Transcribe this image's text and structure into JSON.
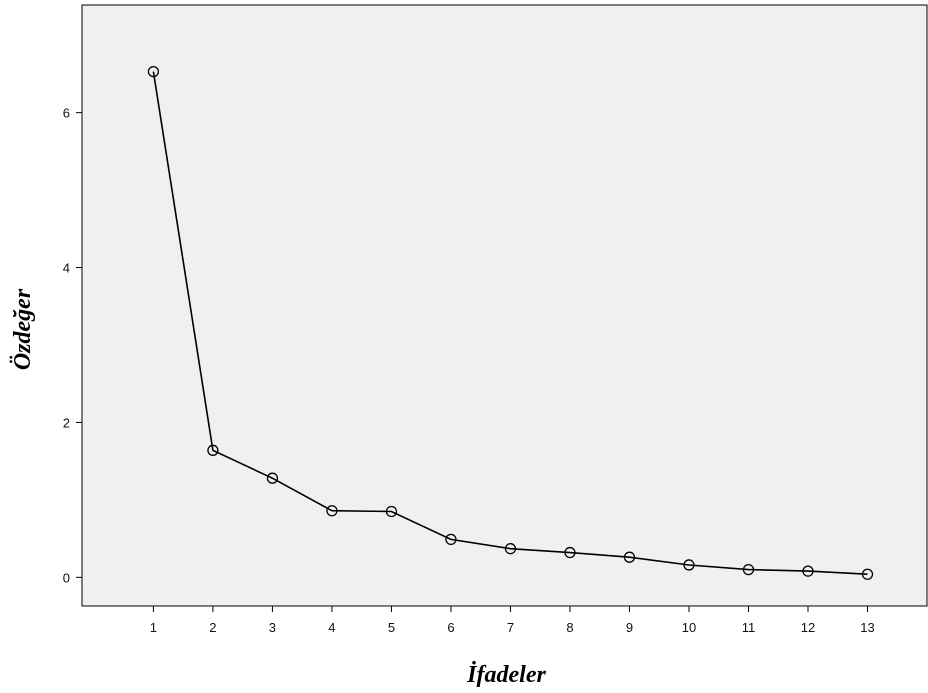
{
  "chart_data": {
    "type": "line",
    "xlabel": "İfadeler",
    "ylabel": "Özdeğer",
    "x": [
      1,
      2,
      3,
      4,
      5,
      6,
      7,
      8,
      9,
      10,
      11,
      12,
      13
    ],
    "series": [
      {
        "values": [
          6.53,
          1.64,
          1.28,
          0.86,
          0.85,
          0.49,
          0.37,
          0.32,
          0.26,
          0.16,
          0.1,
          0.08,
          0.04
        ]
      }
    ],
    "xlim": [
      -0.2,
      14
    ],
    "ylim": [
      -0.37,
      7.39
    ],
    "yticks": [
      0,
      2,
      4,
      6
    ],
    "xticks": [
      1,
      2,
      3,
      4,
      5,
      6,
      7,
      8,
      9,
      10,
      11,
      12,
      13
    ],
    "grid": false,
    "legend": "none",
    "marker": "open-circle",
    "colors": {
      "plot_background": "#f0f0f0",
      "line": "#000000",
      "axis": "#000000"
    }
  }
}
